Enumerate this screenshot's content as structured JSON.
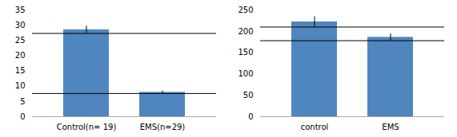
{
  "chart_data": [
    {
      "type": "bar",
      "categories": [
        "Control(n= 19)",
        "EMS(n=29)"
      ],
      "values": [
        28.5,
        8.0
      ],
      "errors": [
        1.2,
        0.4
      ],
      "color": "#4f86c0",
      "ylim": [
        0,
        35
      ],
      "yticks": [
        0,
        5,
        10,
        15,
        20,
        25,
        30,
        35
      ],
      "grid": false
    },
    {
      "type": "bar",
      "categories": [
        "control",
        "EMS"
      ],
      "values": [
        222,
        186
      ],
      "errors": [
        12,
        8
      ],
      "color": "#4f86c0",
      "ylim": [
        0,
        250
      ],
      "yticks": [
        0,
        50,
        100,
        150,
        200,
        250
      ],
      "grid": false
    }
  ]
}
